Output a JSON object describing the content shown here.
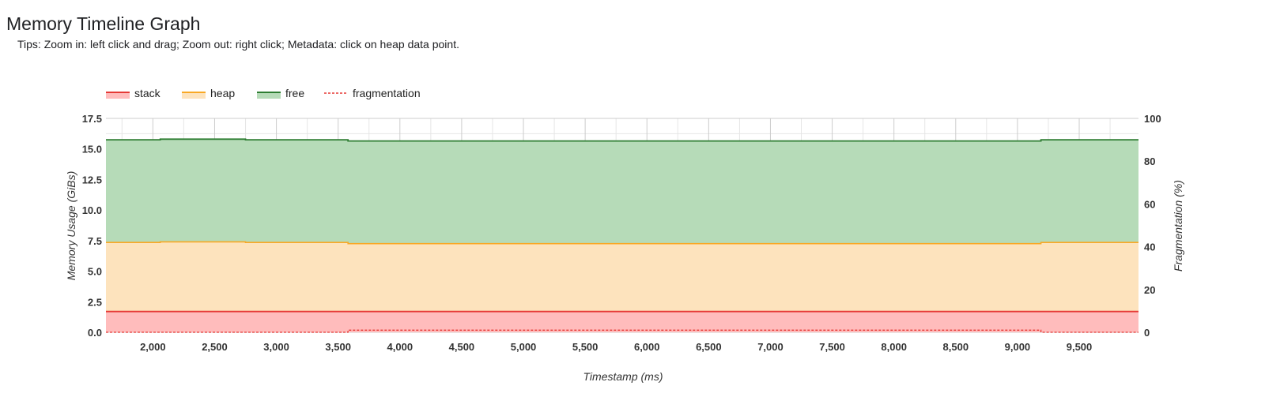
{
  "page": {
    "title": "Memory Timeline Graph",
    "tips": "Tips: Zoom in: left click and drag; Zoom out: right click; Metadata: click on heap data point."
  },
  "colors": {
    "stack_line": "#e53935",
    "stack_fill": "#ffbcbc",
    "heap_line": "#f9a825",
    "heap_fill": "#fde3bd",
    "free_line": "#2e7d32",
    "free_fill": "#b6dbb8",
    "fragmentation": "#e53935",
    "grid_major": "#cccccc",
    "grid_minor": "#e6e6e6"
  },
  "chart_data": {
    "type": "area",
    "stacked": true,
    "xlabel": "Timestamp (ms)",
    "ylabel": "Memory Usage (GiBs)",
    "y2label": "Fragmentation (%)",
    "xlim": [
      1620,
      9980
    ],
    "ylim": [
      0,
      17.5
    ],
    "y2lim": [
      0,
      100
    ],
    "x_ticks": [
      2000,
      2500,
      3000,
      3500,
      4000,
      4500,
      5000,
      5500,
      6000,
      6500,
      7000,
      7500,
      8000,
      8500,
      9000,
      9500
    ],
    "x_tick_labels": [
      "2,000",
      "2,500",
      "3,000",
      "3,500",
      "4,000",
      "4,500",
      "5,000",
      "5,500",
      "6,000",
      "6,500",
      "7,000",
      "7,500",
      "8,000",
      "8,500",
      "9,000",
      "9,500"
    ],
    "y_ticks": [
      0,
      2.5,
      5,
      7.5,
      10,
      12.5,
      15,
      17.5
    ],
    "y_tick_labels": [
      "0.0",
      "2.5",
      "5.0",
      "7.5",
      "10.0",
      "12.5",
      "15.0",
      "17.5"
    ],
    "y2_ticks": [
      0,
      20,
      40,
      60,
      80,
      100
    ],
    "y2_tick_labels": [
      "0",
      "20",
      "40",
      "60",
      "80",
      "100"
    ],
    "grid": true,
    "legend_position": "top-left",
    "legend": [
      {
        "name": "stack",
        "style": "area"
      },
      {
        "name": "heap",
        "style": "area"
      },
      {
        "name": "free",
        "style": "area"
      },
      {
        "name": "fragmentation",
        "style": "dashed"
      }
    ],
    "series": [
      {
        "name": "stack",
        "axis": "left",
        "x": [
          1620,
          9980
        ],
        "values": [
          1.7,
          1.7
        ]
      },
      {
        "name": "heap",
        "axis": "left",
        "x": [
          1620,
          2060,
          2060,
          2750,
          2750,
          3580,
          3580,
          9190,
          9190,
          9980
        ],
        "values": [
          5.65,
          5.65,
          5.7,
          5.7,
          5.65,
          5.65,
          5.55,
          5.55,
          5.65,
          5.65
        ]
      },
      {
        "name": "free",
        "axis": "left",
        "x": [
          1620,
          9980
        ],
        "values": [
          8.4,
          8.4
        ]
      },
      {
        "name": "fragmentation",
        "axis": "right",
        "x": [
          1620,
          3580,
          3580,
          9190,
          9190,
          9980
        ],
        "values": [
          0,
          0,
          1,
          1,
          0,
          0
        ]
      }
    ]
  }
}
